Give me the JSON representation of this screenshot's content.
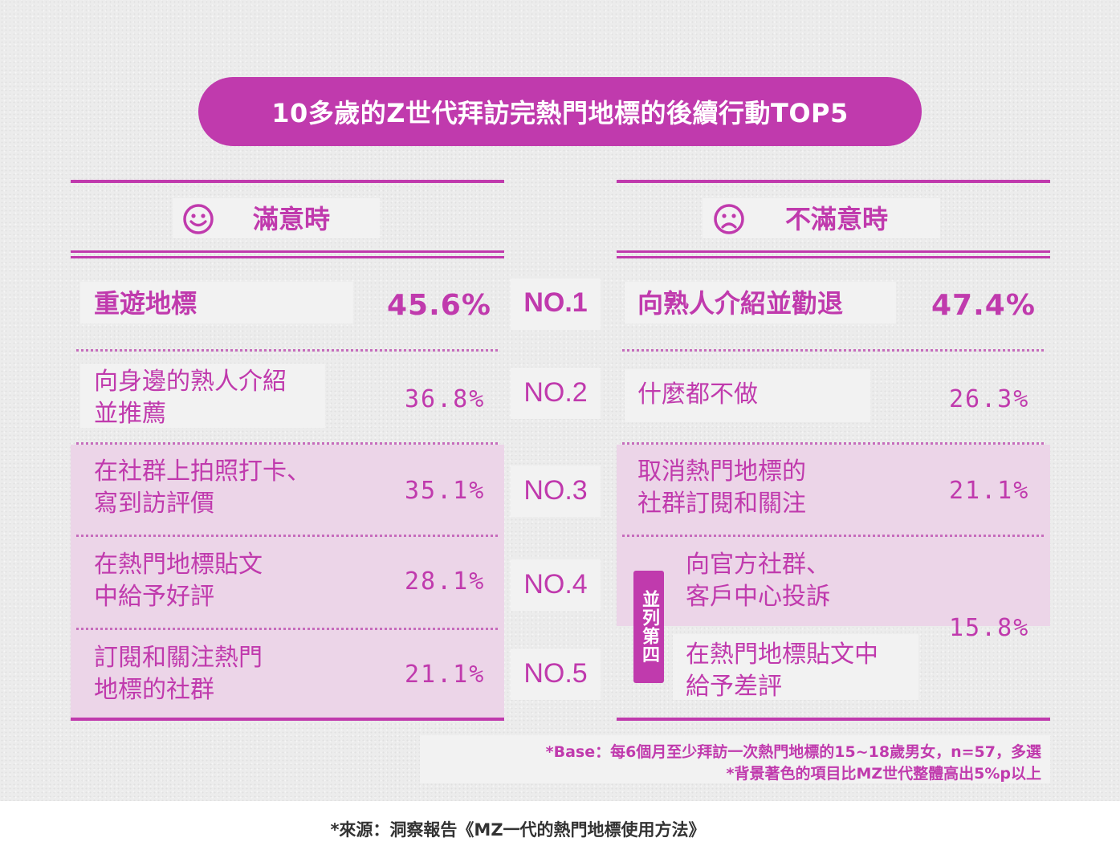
{
  "title": "10多歲的Z世代拜訪完熱門地標的後續行動TOP5",
  "colors": {
    "accent": "#c03aad",
    "highlight_row": "#ecd5e8",
    "panel": "#f2f2f2"
  },
  "left": {
    "header": "滿意時",
    "icon": "smile-face-icon",
    "items": [
      {
        "label": "重遊地標",
        "value": "45.6%",
        "highlighted": false
      },
      {
        "label": "向身邊的熟人介紹\n並推薦",
        "value": "36.8%",
        "highlighted": false
      },
      {
        "label": "在社群上拍照打卡、\n寫到訪評價",
        "value": "35.1%",
        "highlighted": true
      },
      {
        "label": "在熱門地標貼文\n中給予好評",
        "value": "28.1%",
        "highlighted": true
      },
      {
        "label": "訂閱和關注熱門\n地標的社群",
        "value": "21.1%",
        "highlighted": true
      }
    ]
  },
  "ranks": [
    "NO.1",
    "NO.2",
    "NO.3",
    "NO.4",
    "NO.5"
  ],
  "right": {
    "header": "不滿意時",
    "icon": "sad-face-icon",
    "items": [
      {
        "label": "向熟人介紹並勸退",
        "value": "47.4%",
        "highlighted": false
      },
      {
        "label": "什麼都不做",
        "value": "26.3%",
        "highlighted": false
      },
      {
        "label": "取消熱門地標的\n社群訂閱和關注",
        "value": "21.1%",
        "highlighted": true
      },
      {
        "label": "向官方社群、\n客戶中心投訴",
        "value": "",
        "highlighted": true
      },
      {
        "label": "在熱門地標貼文中\n給予差評",
        "value": "",
        "highlighted": false
      }
    ],
    "tie_badge": "並列第四",
    "tie_value": "15.8%"
  },
  "notes": {
    "base": "*Base：每6個月至少拜訪一次熱門地標的15~18歲男女，n=57，多選",
    "highlight": "*背景著色的項目比MZ世代整體高出5%p以上"
  },
  "source": "*來源：洞察報告《MZ一代的熱門地標使用方法》"
}
